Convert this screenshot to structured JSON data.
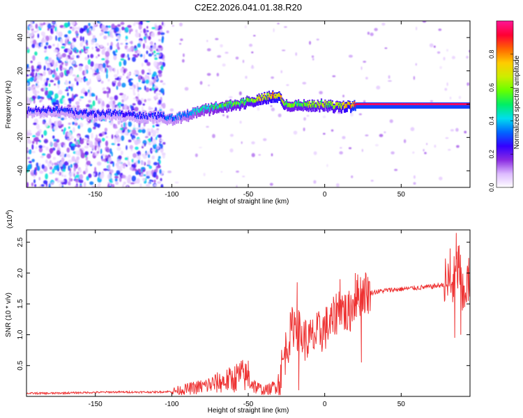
{
  "title": "C2E2.2026.041.01.38.R20",
  "chart_data": [
    {
      "type": "heatmap",
      "xlabel": "Height of straight line (km)",
      "ylabel": "Frequency (Hz)",
      "xlim": [
        -195,
        95
      ],
      "ylim": [
        -50,
        50
      ],
      "xticks": [
        -150,
        -100,
        -50,
        0,
        50
      ],
      "yticks": [
        -40,
        -20,
        0,
        20,
        40
      ],
      "colorbar": {
        "label": "Normalized spectral amplitude",
        "range": [
          0,
          1
        ],
        "ticks": [
          0.0,
          0.2,
          0.4,
          0.6,
          0.8
        ],
        "colormap": [
          "#ffffff",
          "#ddbbff",
          "#8a2be2",
          "#3300ff",
          "#0066ff",
          "#00ddee",
          "#00ee66",
          "#66ff00",
          "#ccee00",
          "#ffcc00",
          "#ff6600",
          "#ff0033",
          "#ff1493"
        ]
      },
      "ridge": {
        "x": [
          -195,
          -180,
          -170,
          -160,
          -150,
          -140,
          -130,
          -120,
          -110,
          -100,
          -90,
          -80,
          -70,
          -60,
          -50,
          -40,
          -35,
          -30,
          -27,
          -25,
          -20,
          -10,
          0,
          10,
          20,
          40,
          60,
          80,
          95
        ],
        "frequency": [
          -4,
          -3,
          -4,
          -5,
          -6,
          -5,
          -6,
          -7,
          -7,
          -8,
          -6,
          -3,
          -1,
          0,
          2,
          4,
          5,
          5,
          1,
          0,
          0,
          0,
          0,
          -1,
          0,
          0,
          0,
          0,
          0
        ],
        "amplitude": [
          0.3,
          0.3,
          0.32,
          0.3,
          0.3,
          0.3,
          0.3,
          0.3,
          0.3,
          0.35,
          0.4,
          0.5,
          0.55,
          0.6,
          0.65,
          0.75,
          0.8,
          0.85,
          0.7,
          0.6,
          0.6,
          0.65,
          0.65,
          0.7,
          0.95,
          0.95,
          0.95,
          0.95,
          0.95
        ]
      }
    },
    {
      "type": "line",
      "xlabel": "Height of straight line (km)",
      "ylabel": "SNR (10 * v/v)",
      "y_scale_label": "(x10",
      "y_scale_exponent": "4",
      "xlim": [
        -195,
        95
      ],
      "ylim": [
        0,
        2.7
      ],
      "xticks": [
        -150,
        -100,
        -50,
        0,
        50
      ],
      "yticks": [
        0.5,
        1.0,
        1.5,
        2.0,
        2.5
      ],
      "series": [
        {
          "color": "#ee3333",
          "x": [
            -195,
            -180,
            -160,
            -140,
            -120,
            -110,
            -100,
            -90,
            -80,
            -70,
            -60,
            -55,
            -50,
            -45,
            -40,
            -35,
            -30,
            -25,
            -20,
            -15,
            -10,
            -5,
            0,
            5,
            10,
            15,
            20,
            25,
            30,
            40,
            50,
            60,
            70,
            75,
            80,
            85,
            88,
            90,
            92,
            95
          ],
          "values": [
            0.05,
            0.05,
            0.06,
            0.07,
            0.07,
            0.07,
            0.08,
            0.12,
            0.16,
            0.22,
            0.28,
            0.35,
            0.3,
            0.15,
            0.1,
            0.12,
            0.25,
            0.8,
            1.2,
            0.95,
            0.9,
            1.0,
            1.1,
            1.2,
            1.5,
            1.3,
            1.6,
            1.7,
            1.68,
            1.72,
            1.74,
            1.76,
            1.78,
            1.8,
            1.82,
            1.85,
            2.2,
            1.5,
            1.8,
            1.85
          ],
          "spikes": [
            {
              "x": -50,
              "y": 0.58
            },
            {
              "x": -18,
              "y": 1.85
            },
            {
              "x": -17,
              "y": 0.1
            },
            {
              "x": 10,
              "y": 1.9
            },
            {
              "x": 20,
              "y": 2.0
            },
            {
              "x": 24,
              "y": 0.55
            },
            {
              "x": 82,
              "y": 2.4
            },
            {
              "x": 86,
              "y": 2.65
            },
            {
              "x": 85,
              "y": 0.95
            },
            {
              "x": 89,
              "y": 1.0
            }
          ]
        }
      ]
    }
  ]
}
